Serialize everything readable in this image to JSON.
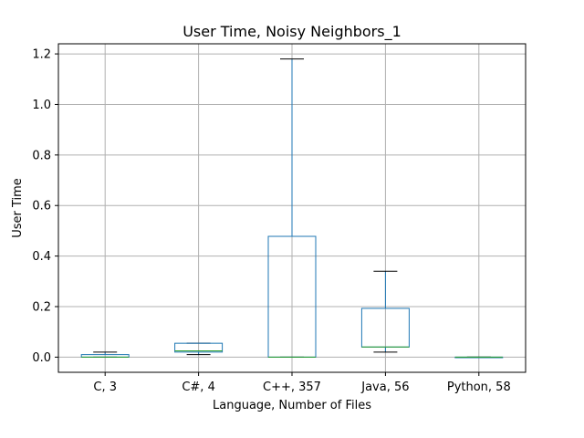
{
  "chart_data": {
    "type": "box",
    "title": "User Time, Noisy Neighbors_1",
    "xlabel": "Language, Number of Files",
    "ylabel": "User Time",
    "ylim": [
      -0.06,
      1.24
    ],
    "yticks": [
      0.0,
      0.2,
      0.4,
      0.6,
      0.8,
      1.0,
      1.2
    ],
    "ytick_labels": [
      "0.0",
      "0.2",
      "0.4",
      "0.6",
      "0.8",
      "1.0",
      "1.2"
    ],
    "grid": true,
    "categories": [
      "C, 3",
      "C#, 4",
      "C++, 357",
      "Java, 56",
      "Python, 58"
    ],
    "boxes": [
      {
        "whisker_low": 0.0,
        "q1": 0.0,
        "median": 0.0,
        "q3": 0.01,
        "whisker_high": 0.02
      },
      {
        "whisker_low": 0.01,
        "q1": 0.02,
        "median": 0.025,
        "q3": 0.055,
        "whisker_high": 0.055
      },
      {
        "whisker_low": 0.0,
        "q1": 0.0,
        "median": 0.0,
        "q3": 0.478,
        "whisker_high": 1.18
      },
      {
        "whisker_low": 0.02,
        "q1": 0.04,
        "median": 0.04,
        "q3": 0.193,
        "whisker_high": 0.34
      },
      {
        "whisker_low": 0.0,
        "q1": 0.0,
        "median": 0.0,
        "q3": 0.0,
        "whisker_high": 0.0
      }
    ],
    "colors": {
      "box": "#1f77b4",
      "median": "#2ca02c",
      "cap": "#000000",
      "grid": "#b0b0b0"
    }
  }
}
